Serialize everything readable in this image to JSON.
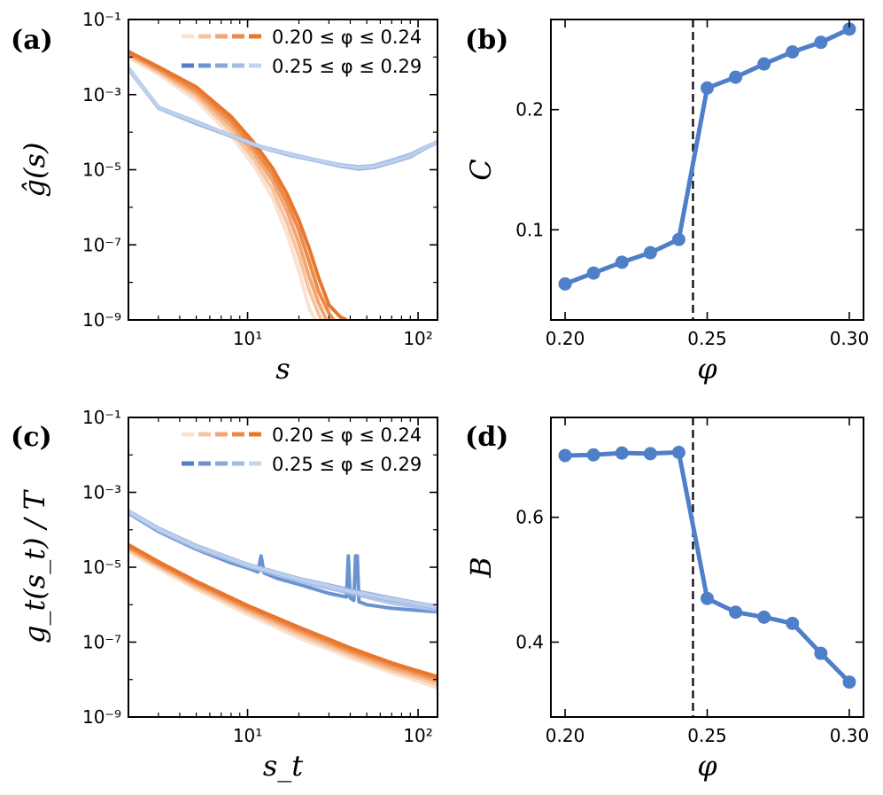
{
  "figure": {
    "colors": {
      "orange_series": [
        "#fbe1cf",
        "#f7c4a0",
        "#f3a673",
        "#ee8a48",
        "#e8772e"
      ],
      "blue_series": [
        "#4f7fc8",
        "#6b93d2",
        "#87a8dc",
        "#a3bde5",
        "#c3d4ee"
      ],
      "point_blue": "#4f7fc8"
    },
    "legend": {
      "orange_label": "0.20 ≤ φ ≤ 0.24",
      "blue_label": "0.25 ≤ φ ≤ 0.29"
    }
  },
  "chart_data": [
    {
      "panel": "(a)",
      "type": "line",
      "xscale": "log",
      "yscale": "log",
      "xlim": [
        2,
        130
      ],
      "ylim": [
        1e-09,
        0.1
      ],
      "xlabel": "s",
      "ylabel": "ĝ(s)",
      "xticks": [
        10,
        100
      ],
      "xtick_labels": [
        "10¹",
        "10²"
      ],
      "yticks": [
        1e-09,
        1e-07,
        1e-05,
        0.001,
        0.1
      ],
      "ytick_labels": [
        "10⁻⁹",
        "10⁻⁷",
        "10⁻⁵",
        "10⁻³",
        "10⁻¹"
      ],
      "legend_position": "top-right",
      "series": [
        {
          "group": "orange",
          "x": [
            2,
            3,
            5,
            8,
            11,
            14,
            17,
            20,
            23,
            25
          ],
          "y": [
            0.01,
            0.0035,
            0.0007,
            8e-05,
            1.2e-05,
            1.8e-06,
            2e-07,
            2e-08,
            2e-09,
            1e-09
          ]
        },
        {
          "group": "orange",
          "x": [
            2,
            3,
            5,
            8,
            11,
            14,
            17,
            20,
            23,
            26,
            27
          ],
          "y": [
            0.011,
            0.004,
            0.0009,
            0.00011,
            1.8e-05,
            3e-06,
            4e-07,
            5e-08,
            6e-09,
            1.5e-09,
            1e-09
          ]
        },
        {
          "group": "orange",
          "x": [
            2,
            3,
            5,
            8,
            11,
            14,
            17,
            20,
            23,
            26,
            29
          ],
          "y": [
            0.012,
            0.0045,
            0.0011,
            0.00015,
            2.6e-05,
            5e-06,
            8e-07,
            1.1e-07,
            1.4e-08,
            3e-09,
            1e-09
          ]
        },
        {
          "group": "orange",
          "x": [
            2,
            3,
            5,
            8,
            11,
            14,
            17,
            20,
            23,
            26,
            30,
            32
          ],
          "y": [
            0.013,
            0.005,
            0.0013,
            0.0002,
            3.6e-05,
            7.5e-06,
            1.4e-06,
            2.4e-07,
            3.5e-08,
            6e-09,
            1.5e-09,
            1e-09
          ]
        },
        {
          "group": "orange",
          "x": [
            2,
            3,
            5,
            8,
            11,
            14,
            17,
            20,
            23,
            26,
            30,
            35,
            38
          ],
          "y": [
            0.014,
            0.0055,
            0.0016,
            0.00026,
            5e-05,
            1.1e-05,
            2.3e-06,
            4.5e-07,
            8e-08,
            1.4e-08,
            2.5e-09,
            1.2e-09,
            1e-09
          ]
        },
        {
          "group": "blue",
          "x": [
            2,
            3,
            5,
            8,
            12,
            18,
            25,
            35,
            45,
            55,
            70,
            90,
            110,
            130
          ],
          "y": [
            0.005,
            0.00045,
            0.00018,
            8e-05,
            4e-05,
            2.5e-05,
            1.8e-05,
            1.3e-05,
            1.1e-05,
            1.2e-05,
            1.6e-05,
            2.3e-05,
            3.8e-05,
            5.5e-05
          ]
        },
        {
          "group": "blue",
          "x": [
            2,
            3,
            5,
            8,
            12,
            18,
            25,
            35,
            45,
            55,
            70,
            90,
            110,
            130
          ],
          "y": [
            0.0048,
            0.00044,
            0.00017,
            7.8e-05,
            3.9e-05,
            2.4e-05,
            1.75e-05,
            1.25e-05,
            1.05e-05,
            1.15e-05,
            1.55e-05,
            2.2e-05,
            3.7e-05,
            5.4e-05
          ]
        },
        {
          "group": "blue",
          "x": [
            2,
            3,
            5,
            8,
            12,
            18,
            25,
            35,
            45,
            55,
            70,
            90,
            110,
            130
          ],
          "y": [
            0.0052,
            0.00046,
            0.00019,
            8.2e-05,
            4.1e-05,
            2.6e-05,
            1.85e-05,
            1.35e-05,
            1.15e-05,
            1.25e-05,
            1.7e-05,
            2.4e-05,
            3.9e-05,
            5.6e-05
          ]
        },
        {
          "group": "blue",
          "x": [
            2,
            3,
            5,
            8,
            12,
            18,
            25,
            35,
            45,
            55,
            70,
            90,
            110,
            130
          ],
          "y": [
            0.0049,
            0.00045,
            0.000175,
            8e-05,
            4e-05,
            2.5e-05,
            1.8e-05,
            1.35e-05,
            1.2e-05,
            1.3e-05,
            1.8e-05,
            2.6e-05,
            4e-05,
            5.5e-05
          ]
        },
        {
          "group": "blue",
          "x": [
            2,
            3,
            5,
            8,
            12,
            18,
            25,
            35,
            45,
            55,
            70,
            90,
            110,
            130
          ],
          "y": [
            0.0051,
            0.00045,
            0.000185,
            8.1e-05,
            4e-05,
            2.5e-05,
            1.8e-05,
            1.3e-05,
            1.1e-05,
            1.2e-05,
            1.6e-05,
            2.3e-05,
            3.8e-05,
            5.5e-05
          ]
        }
      ]
    },
    {
      "panel": "(b)",
      "type": "line",
      "xlim": [
        0.195,
        0.305
      ],
      "ylim": [
        0.025,
        0.275
      ],
      "xlabel": "φ",
      "ylabel": "C",
      "xticks": [
        0.2,
        0.25,
        0.3
      ],
      "xtick_labels": [
        "0.20",
        "0.25",
        "0.30"
      ],
      "yticks": [
        0.1,
        0.2
      ],
      "ytick_labels": [
        "0.1",
        "0.2"
      ],
      "vline_x": 0.245,
      "x": [
        0.2,
        0.21,
        0.22,
        0.23,
        0.24,
        0.25,
        0.26,
        0.27,
        0.28,
        0.29,
        0.3
      ],
      "y": [
        0.055,
        0.064,
        0.073,
        0.081,
        0.092,
        0.218,
        0.227,
        0.238,
        0.248,
        0.256,
        0.267
      ]
    },
    {
      "panel": "(c)",
      "type": "line",
      "xscale": "log",
      "yscale": "log",
      "xlim": [
        2,
        130
      ],
      "ylim": [
        1e-09,
        0.1
      ],
      "xlabel": "s_t",
      "ylabel": "g_t(s_t) / T",
      "xticks": [
        10,
        100
      ],
      "xtick_labels": [
        "10¹",
        "10²"
      ],
      "yticks": [
        1e-09,
        1e-07,
        1e-05,
        0.001,
        0.1
      ],
      "ytick_labels": [
        "10⁻⁹",
        "10⁻⁷",
        "10⁻⁵",
        "10⁻³",
        "10⁻¹"
      ],
      "legend_position": "top-right",
      "series": [
        {
          "group": "orange",
          "x": [
            2,
            3,
            5,
            10,
            20,
            40,
            70,
            100,
            130
          ],
          "y": [
            2.6e-05,
            9e-06,
            2.6e-06,
            5.5e-07,
            1.3e-07,
            3.8e-08,
            1.5e-08,
            9e-09,
            6e-09
          ]
        },
        {
          "group": "orange",
          "x": [
            2,
            3,
            5,
            10,
            20,
            40,
            70,
            100,
            130
          ],
          "y": [
            3e-05,
            1.05e-05,
            3e-06,
            6.5e-07,
            1.6e-07,
            4.5e-08,
            1.8e-08,
            1.1e-08,
            7.5e-09
          ]
        },
        {
          "group": "orange",
          "x": [
            2,
            3,
            5,
            10,
            20,
            40,
            70,
            100,
            130
          ],
          "y": [
            3.3e-05,
            1.15e-05,
            3.4e-06,
            7.5e-07,
            1.9e-07,
            5.3e-08,
            2.1e-08,
            1.3e-08,
            9e-09
          ]
        },
        {
          "group": "orange",
          "x": [
            2,
            3,
            5,
            10,
            20,
            40,
            70,
            100,
            130
          ],
          "y": [
            3.6e-05,
            1.25e-05,
            3.8e-06,
            8.5e-07,
            2.2e-07,
            6e-08,
            2.5e-08,
            1.5e-08,
            1.05e-08
          ]
        },
        {
          "group": "orange",
          "x": [
            2,
            3,
            5,
            10,
            20,
            40,
            70,
            100,
            130
          ],
          "y": [
            4e-05,
            1.4e-05,
            4.2e-06,
            9.5e-07,
            2.5e-07,
            7e-08,
            2.8e-08,
            1.7e-08,
            1.2e-08
          ]
        },
        {
          "group": "blue",
          "x": [
            2,
            3,
            5,
            8,
            10,
            11.5,
            12,
            12.5,
            15,
            20,
            30,
            38,
            39,
            40,
            42,
            43,
            44,
            45,
            50,
            70,
            100,
            130
          ],
          "y": [
            0.00028,
            9e-05,
            3e-05,
            1.3e-05,
            9.5e-06,
            7.5e-06,
            2e-05,
            7e-06,
            5e-06,
            3.5e-06,
            2e-06,
            1.6e-06,
            2e-05,
            1.5e-06,
            1.3e-06,
            2e-05,
            2e-05,
            1.2e-06,
            1e-06,
            8e-07,
            7e-07,
            6.5e-07
          ]
        },
        {
          "group": "blue",
          "x": [
            2,
            3,
            5,
            10,
            20,
            40,
            70,
            100,
            130
          ],
          "y": [
            0.0003,
            0.0001,
            3.5e-05,
            1.1e-05,
            4.5e-06,
            2.2e-06,
            1.3e-06,
            1e-06,
            8e-07
          ]
        },
        {
          "group": "blue",
          "x": [
            2,
            3,
            5,
            10,
            20,
            40,
            70,
            100,
            130
          ],
          "y": [
            0.00032,
            0.00011,
            3.8e-05,
            1.2e-05,
            5e-06,
            2.5e-06,
            1.5e-06,
            1.1e-06,
            9e-07
          ]
        },
        {
          "group": "blue",
          "x": [
            2,
            3,
            5,
            10,
            20,
            40,
            70,
            100,
            130
          ],
          "y": [
            0.00029,
            9.5e-05,
            3.2e-05,
            1.05e-05,
            4.2e-06,
            2e-06,
            1.1e-06,
            8.5e-07,
            7e-07
          ]
        },
        {
          "group": "blue",
          "x": [
            2,
            3,
            5,
            10,
            20,
            40,
            70,
            100,
            130
          ],
          "y": [
            0.00031,
            0.000105,
            3.6e-05,
            1.15e-05,
            4.8e-06,
            2.3e-06,
            1.4e-06,
            1.05e-06,
            8.5e-07
          ]
        }
      ]
    },
    {
      "panel": "(d)",
      "type": "line",
      "xlim": [
        0.195,
        0.305
      ],
      "ylim": [
        0.28,
        0.76
      ],
      "xlabel": "φ",
      "ylabel": "B",
      "xticks": [
        0.2,
        0.25,
        0.3
      ],
      "xtick_labels": [
        "0.20",
        "0.25",
        "0.30"
      ],
      "yticks": [
        0.4,
        0.6
      ],
      "ytick_labels": [
        "0.4",
        "0.6"
      ],
      "vline_x": 0.245,
      "x": [
        0.2,
        0.21,
        0.22,
        0.23,
        0.24,
        0.25,
        0.26,
        0.27,
        0.28,
        0.29,
        0.3
      ],
      "y": [
        0.699,
        0.7,
        0.703,
        0.702,
        0.704,
        0.47,
        0.448,
        0.44,
        0.43,
        0.382,
        0.336
      ]
    }
  ]
}
